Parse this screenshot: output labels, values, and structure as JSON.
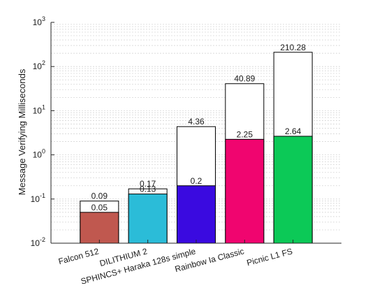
{
  "chart_data": {
    "type": "bar",
    "title": "",
    "xlabel": "",
    "ylabel": "Message Verifying Milliseconds",
    "yscale": "log",
    "ylim": [
      0.01,
      1000
    ],
    "grid": "minor-dashed-y",
    "legend": "none",
    "categories": [
      "Falcon 512",
      "DILITHIUM 2",
      "SPHINCS+ Haraka 128s simple",
      "Rainbow Ia Classic",
      "Picnic L1 FS"
    ],
    "y_tick_labels": [
      {
        "base": "10",
        "exp": "-2"
      },
      {
        "base": "10",
        "exp": "-1"
      },
      {
        "base": "10",
        "exp": "0"
      },
      {
        "base": "10",
        "exp": "1"
      },
      {
        "base": "10",
        "exp": "2"
      },
      {
        "base": "10",
        "exp": "3"
      }
    ],
    "series": [
      {
        "values": [
          0.09,
          0.17,
          4.36,
          40.89,
          210.28
        ],
        "labels": [
          "0.09",
          "0.17",
          "4.36",
          "40.89",
          "210.28"
        ],
        "color": "#ffffff"
      },
      {
        "values": [
          0.05,
          0.13,
          0.2,
          2.25,
          2.64
        ],
        "labels": [
          "0.05",
          "0.13",
          "0.2",
          "2.25",
          "2.64"
        ],
        "colors": [
          "#c0584f",
          "#2bbcd8",
          "#3a0ae0",
          "#f0056f",
          "#0cc957"
        ]
      }
    ]
  }
}
